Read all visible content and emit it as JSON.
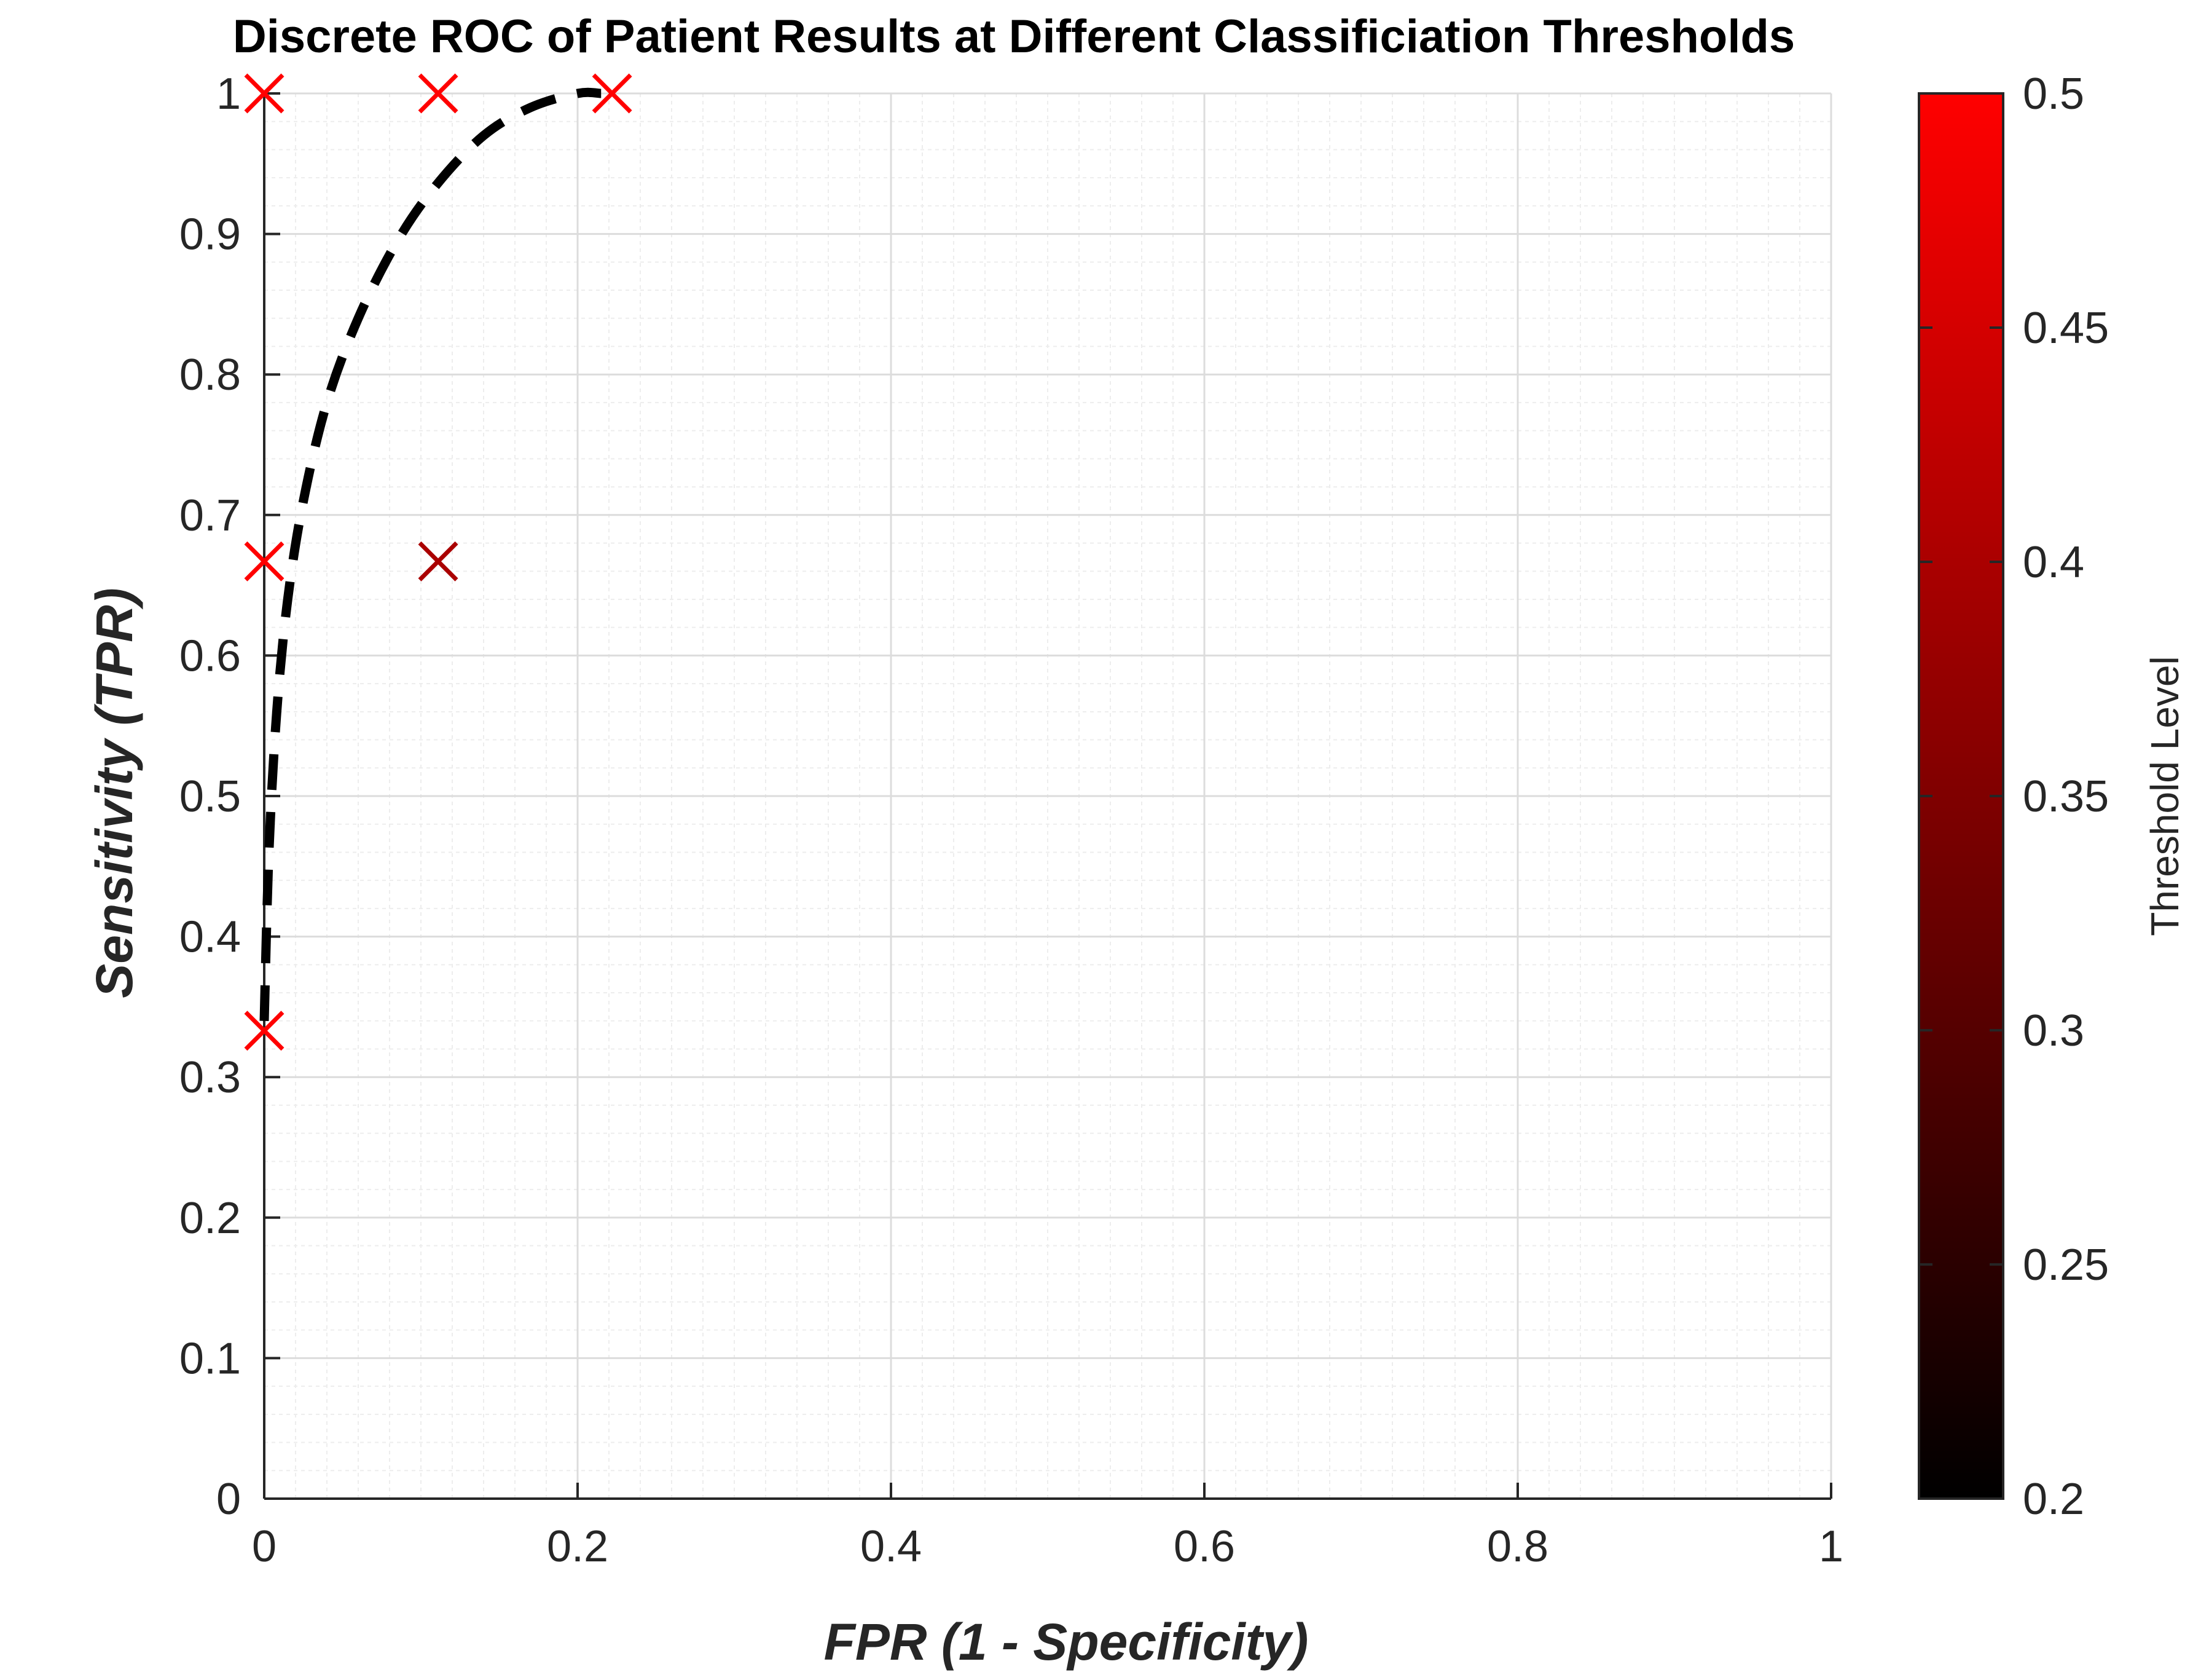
{
  "chart_data": {
    "type": "scatter",
    "title": "Discrete ROC of Patient Results at Different Classificiation Thresholds",
    "xlabel": "FPR (1 - Specificity)",
    "ylabel": "Sensitivity (TPR)",
    "xlim": [
      0,
      1
    ],
    "ylim": [
      0,
      1
    ],
    "x_ticks": [
      0,
      0.2,
      0.4,
      0.6,
      0.8,
      1
    ],
    "x_tick_labels": [
      "0",
      "0.2",
      "0.4",
      "0.6",
      "0.8",
      "1"
    ],
    "y_ticks": [
      0,
      0.1,
      0.2,
      0.3,
      0.4,
      0.5,
      0.6,
      0.7,
      0.8,
      0.9,
      1
    ],
    "y_tick_labels": [
      "0",
      "0.1",
      "0.2",
      "0.3",
      "0.4",
      "0.5",
      "0.6",
      "0.7",
      "0.8",
      "0.9",
      "1"
    ],
    "grid": true,
    "minor_grid": true,
    "marker": "x",
    "points": [
      {
        "fpr": 0.0,
        "tpr": 1.0,
        "threshold": 0.5
      },
      {
        "fpr": 0.111,
        "tpr": 1.0,
        "threshold": 0.5
      },
      {
        "fpr": 0.222,
        "tpr": 1.0,
        "threshold": 0.5
      },
      {
        "fpr": 0.0,
        "tpr": 0.667,
        "threshold": 0.5
      },
      {
        "fpr": 0.111,
        "tpr": 0.667,
        "threshold": 0.4
      },
      {
        "fpr": 0.0,
        "tpr": 0.333,
        "threshold": 0.5
      }
    ],
    "fit_curve": {
      "style": "dashed",
      "color": "#000000",
      "x": [
        0.0,
        0.003,
        0.008,
        0.015,
        0.025,
        0.04,
        0.06,
        0.085,
        0.11,
        0.14,
        0.17,
        0.2,
        0.215
      ],
      "y": [
        0.34,
        0.46,
        0.56,
        0.64,
        0.71,
        0.78,
        0.84,
        0.895,
        0.935,
        0.97,
        0.99,
        1.0,
        1.0
      ]
    },
    "colorbar": {
      "label": "Threshold Level",
      "min": 0.2,
      "max": 0.5,
      "ticks": [
        0.2,
        0.25,
        0.3,
        0.35,
        0.4,
        0.45,
        0.5
      ],
      "tick_labels": [
        "0.2",
        "0.25",
        "0.3",
        "0.35",
        "0.4",
        "0.45",
        "0.5"
      ],
      "color_low": "#000000",
      "color_high": "#ff0000"
    }
  }
}
